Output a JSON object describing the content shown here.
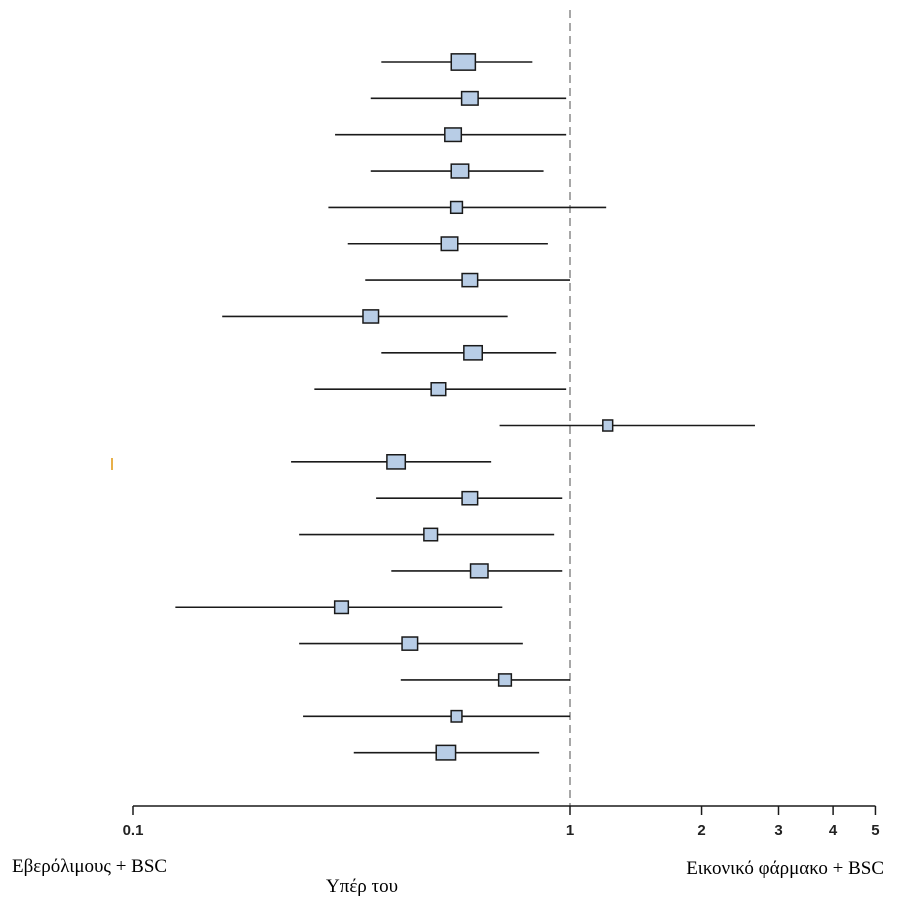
{
  "chart_data": {
    "type": "forest",
    "x_scale": "log",
    "xlim": [
      0.1,
      5
    ],
    "x_ticks": [
      {
        "value": 0.1,
        "label": "0.1"
      },
      {
        "value": 1,
        "label": "1"
      },
      {
        "value": 2,
        "label": "2"
      },
      {
        "value": 3,
        "label": "3"
      },
      {
        "value": 4,
        "label": "4"
      },
      {
        "value": 5,
        "label": "5"
      }
    ],
    "reference_line": 1,
    "grid": false,
    "rows": [
      {
        "estimate": 0.57,
        "lower": 0.37,
        "upper": 0.82,
        "weight": 0.9
      },
      {
        "estimate": 0.59,
        "lower": 0.35,
        "upper": 0.98,
        "weight": 0.5
      },
      {
        "estimate": 0.54,
        "lower": 0.29,
        "upper": 0.98,
        "weight": 0.5
      },
      {
        "estimate": 0.56,
        "lower": 0.35,
        "upper": 0.87,
        "weight": 0.55
      },
      {
        "estimate": 0.55,
        "lower": 0.28,
        "upper": 1.21,
        "weight": 0.25
      },
      {
        "estimate": 0.53,
        "lower": 0.31,
        "upper": 0.89,
        "weight": 0.5
      },
      {
        "estimate": 0.59,
        "lower": 0.34,
        "upper": 1.0,
        "weight": 0.45
      },
      {
        "estimate": 0.35,
        "lower": 0.16,
        "upper": 0.72,
        "weight": 0.45
      },
      {
        "estimate": 0.6,
        "lower": 0.37,
        "upper": 0.93,
        "weight": 0.6
      },
      {
        "estimate": 0.5,
        "lower": 0.26,
        "upper": 0.98,
        "weight": 0.4
      },
      {
        "estimate": 1.22,
        "lower": 0.69,
        "upper": 2.65,
        "weight": 0.15
      },
      {
        "estimate": 0.4,
        "lower": 0.23,
        "upper": 0.66,
        "weight": 0.6
      },
      {
        "estimate": 0.59,
        "lower": 0.36,
        "upper": 0.96,
        "weight": 0.45
      },
      {
        "estimate": 0.48,
        "lower": 0.24,
        "upper": 0.92,
        "weight": 0.35
      },
      {
        "estimate": 0.62,
        "lower": 0.39,
        "upper": 0.96,
        "weight": 0.55
      },
      {
        "estimate": 0.3,
        "lower": 0.125,
        "upper": 0.7,
        "weight": 0.35
      },
      {
        "estimate": 0.43,
        "lower": 0.24,
        "upper": 0.78,
        "weight": 0.45
      },
      {
        "estimate": 0.71,
        "lower": 0.41,
        "upper": 1.0,
        "weight": 0.3
      },
      {
        "estimate": 0.55,
        "lower": 0.245,
        "upper": 1.0,
        "weight": 0.2
      },
      {
        "estimate": 0.52,
        "lower": 0.32,
        "upper": 0.85,
        "weight": 0.65
      }
    ],
    "annotations": {
      "left": "Εβερόλιμους + BSC",
      "right": "Εικονικό φάρμακο + BSC",
      "center": "Υπέρ του"
    }
  },
  "colors": {
    "box_fill": "#b8cde6",
    "box_stroke": "#1a1a1a",
    "line": "#1a1a1a",
    "reference_line": "#8a8a8a",
    "axis": "#1a1a1a"
  }
}
